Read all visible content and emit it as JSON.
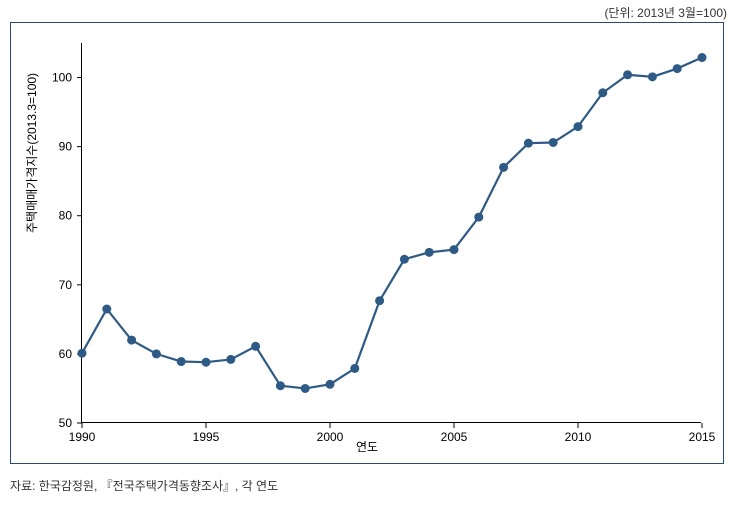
{
  "unit_label": "(단위: 2013년 3월=100)",
  "source": "자료: 한국감정원, 『전국주택가격동향조사』, 각 연도",
  "chart": {
    "type": "line",
    "xlabel": "연도",
    "ylabel": "주택매매가격지수(2013.3=100)",
    "xlim": [
      1990,
      2015
    ],
    "ylim": [
      50,
      105
    ],
    "xtick_step": 5,
    "xticks": [
      1990,
      1995,
      2000,
      2005,
      2010,
      2015
    ],
    "yticks": [
      50,
      60,
      70,
      80,
      90,
      100
    ],
    "line_color": "#2e5a86",
    "line_width": 2.2,
    "marker_color": "#2e5a86",
    "marker_radius": 4.5,
    "background_color": "#ffffff",
    "border_color": "#2b4a6f",
    "axis_fontsize": 12,
    "data": {
      "years": [
        1990,
        1991,
        1992,
        1993,
        1994,
        1995,
        1996,
        1997,
        1998,
        1999,
        2000,
        2001,
        2002,
        2003,
        2004,
        2005,
        2006,
        2007,
        2008,
        2009,
        2010,
        2011,
        2012,
        2013,
        2014,
        2015
      ],
      "values": [
        60.1,
        66.5,
        62.0,
        60.0,
        58.9,
        58.8,
        59.2,
        61.1,
        55.4,
        55.0,
        55.6,
        57.9,
        67.7,
        73.7,
        74.7,
        75.1,
        79.8,
        87.0,
        90.5,
        90.6,
        92.9,
        97.8,
        100.4,
        100.1,
        101.3,
        102.9
      ]
    }
  }
}
